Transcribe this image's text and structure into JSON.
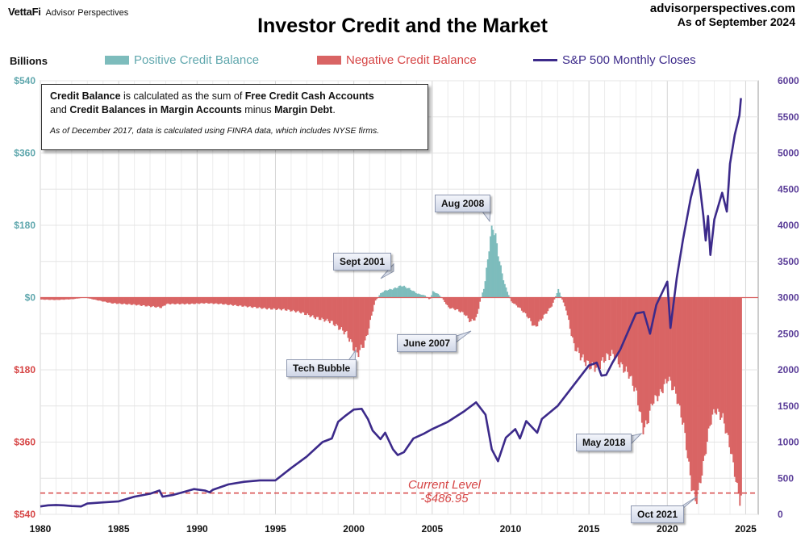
{
  "header": {
    "logo_brand": "VettaFi",
    "logo_sub": "Advisor Perspectives",
    "title": "Investor Credit and the Market",
    "source_line1": "advisorperspectives.com",
    "source_line2": "As of September 2024"
  },
  "legend": {
    "units": "Billions",
    "positive": "Positive Credit Balance",
    "negative": "Negative Credit Balance",
    "sp500": "S&P 500 Monthly Closes"
  },
  "info_box": {
    "line1_bold1": "Credit Balance",
    "line1_mid": " is calculated as the sum of ",
    "line1_bold2": "Free Credit Cash Accounts",
    "line2_pre": "and ",
    "line2_bold": "Credit Balances in Margin Accounts",
    "line2_mid": " minus ",
    "line2_bold2": "Margin Debt",
    "line2_end": ".",
    "note": "As of December 2017, data is calculated using FINRA data, which includes NYSE firms."
  },
  "annotations": {
    "aug2008": "Aug 2008",
    "sept2001": "Sept 2001",
    "june2007": "June 2007",
    "tech_bubble": "Tech Bubble",
    "may2018": "May 2018",
    "oct2021": "Oct 2021",
    "current_label": "Current Level",
    "current_value": "-$486.95"
  },
  "colors": {
    "positive": "#7dbcbc",
    "negative": "#d96464",
    "sp500": "#3c2a8a",
    "left_pos_axis": "#5fa7ad",
    "left_neg_axis": "#d64545",
    "right_axis": "#5a3d98",
    "current_line": "#d64545"
  },
  "chart_data": {
    "type": "bar+line",
    "title": "Investor Credit and the Market",
    "xlabel": "",
    "x_ticks": [
      "1980",
      "1985",
      "1990",
      "1995",
      "2000",
      "2005",
      "2010",
      "2015",
      "2020",
      "2025"
    ],
    "y_left": {
      "label": "Billions",
      "ylim": [
        -540,
        540
      ],
      "tick_labels": [
        "$540",
        "$360",
        "$180",
        "$0",
        "$180",
        "$360",
        "$540"
      ],
      "tick_values": [
        540,
        360,
        180,
        0,
        -180,
        -360,
        -540
      ]
    },
    "y_right": {
      "label": "",
      "ylim": [
        0,
        6000
      ],
      "tick_labels": [
        "6000",
        "5500",
        "5000",
        "4500",
        "4000",
        "3500",
        "3000",
        "2500",
        "2000",
        "1500",
        "1000",
        "500",
        "0"
      ],
      "tick_values": [
        6000,
        5500,
        5000,
        4500,
        4000,
        3500,
        3000,
        2500,
        2000,
        1500,
        1000,
        500,
        0
      ]
    },
    "grid": true,
    "current_level": -486.95,
    "credit_balance_series": {
      "name": "Credit Balance",
      "points": [
        [
          1980.0,
          -5
        ],
        [
          1981.0,
          -6
        ],
        [
          1982.0,
          -4
        ],
        [
          1982.8,
          0
        ],
        [
          1983.5,
          -6
        ],
        [
          1984.5,
          -14
        ],
        [
          1986.0,
          -18
        ],
        [
          1987.7,
          -25
        ],
        [
          1988.0,
          -16
        ],
        [
          1989.5,
          -16
        ],
        [
          1990.5,
          -14
        ],
        [
          1991.5,
          -16
        ],
        [
          1993.0,
          -22
        ],
        [
          1994.5,
          -28
        ],
        [
          1995.5,
          -30
        ],
        [
          1996.5,
          -36
        ],
        [
          1997.5,
          -50
        ],
        [
          1998.5,
          -60
        ],
        [
          1999.5,
          -90
        ],
        [
          2000.0,
          -130
        ],
        [
          2000.2,
          -140
        ],
        [
          2000.7,
          -110
        ],
        [
          2001.0,
          -60
        ],
        [
          2001.3,
          -10
        ],
        [
          2001.7,
          12
        ],
        [
          2002.0,
          18
        ],
        [
          2002.5,
          22
        ],
        [
          2003.0,
          30
        ],
        [
          2003.5,
          22
        ],
        [
          2004.0,
          10
        ],
        [
          2004.5,
          5
        ],
        [
          2004.8,
          -6
        ],
        [
          2005.0,
          15
        ],
        [
          2005.3,
          10
        ],
        [
          2005.6,
          -2
        ],
        [
          2006.0,
          -25
        ],
        [
          2006.5,
          -30
        ],
        [
          2007.0,
          -40
        ],
        [
          2007.4,
          -60
        ],
        [
          2007.8,
          -50
        ],
        [
          2008.0,
          -10
        ],
        [
          2008.3,
          30
        ],
        [
          2008.6,
          130
        ],
        [
          2008.8,
          182
        ],
        [
          2009.0,
          150
        ],
        [
          2009.3,
          80
        ],
        [
          2009.6,
          30
        ],
        [
          2010.0,
          -10
        ],
        [
          2010.5,
          -25
        ],
        [
          2011.0,
          -45
        ],
        [
          2011.5,
          -75
        ],
        [
          2011.8,
          -60
        ],
        [
          2012.2,
          -40
        ],
        [
          2012.6,
          -20
        ],
        [
          2013.0,
          20
        ],
        [
          2013.5,
          -30
        ],
        [
          2014.0,
          -120
        ],
        [
          2014.5,
          -150
        ],
        [
          2015.0,
          -170
        ],
        [
          2015.5,
          -175
        ],
        [
          2016.0,
          -150
        ],
        [
          2016.5,
          -140
        ],
        [
          2017.0,
          -170
        ],
        [
          2017.5,
          -190
        ],
        [
          2018.0,
          -240
        ],
        [
          2018.4,
          -330
        ],
        [
          2018.7,
          -310
        ],
        [
          2019.0,
          -260
        ],
        [
          2019.5,
          -240
        ],
        [
          2020.0,
          -200
        ],
        [
          2020.5,
          -240
        ],
        [
          2021.0,
          -320
        ],
        [
          2021.5,
          -470
        ],
        [
          2021.8,
          -510
        ],
        [
          2022.2,
          -430
        ],
        [
          2022.7,
          -310
        ],
        [
          2023.0,
          -280
        ],
        [
          2023.5,
          -300
        ],
        [
          2024.0,
          -380
        ],
        [
          2024.4,
          -470
        ],
        [
          2024.6,
          -510
        ],
        [
          2024.7,
          -487
        ]
      ]
    },
    "sp500_series": {
      "name": "S&P 500 Monthly Closes",
      "points": [
        [
          1980.0,
          110
        ],
        [
          1980.5,
          125
        ],
        [
          1981.0,
          130
        ],
        [
          1981.5,
          125
        ],
        [
          1982.0,
          115
        ],
        [
          1982.6,
          110
        ],
        [
          1983.0,
          150
        ],
        [
          1984.0,
          165
        ],
        [
          1985.0,
          180
        ],
        [
          1986.0,
          245
        ],
        [
          1987.0,
          285
        ],
        [
          1987.6,
          330
        ],
        [
          1987.8,
          245
        ],
        [
          1988.5,
          270
        ],
        [
          1989.0,
          300
        ],
        [
          1989.8,
          350
        ],
        [
          1990.5,
          330
        ],
        [
          1990.8,
          305
        ],
        [
          1991.0,
          340
        ],
        [
          1992.0,
          415
        ],
        [
          1993.0,
          450
        ],
        [
          1994.0,
          470
        ],
        [
          1995.0,
          470
        ],
        [
          1996.0,
          640
        ],
        [
          1997.0,
          800
        ],
        [
          1998.0,
          1000
        ],
        [
          1998.6,
          1050
        ],
        [
          1999.0,
          1280
        ],
        [
          1999.5,
          1370
        ],
        [
          2000.0,
          1450
        ],
        [
          2000.5,
          1460
        ],
        [
          2000.9,
          1320
        ],
        [
          2001.2,
          1160
        ],
        [
          2001.7,
          1040
        ],
        [
          2002.0,
          1130
        ],
        [
          2002.5,
          900
        ],
        [
          2002.8,
          820
        ],
        [
          2003.2,
          860
        ],
        [
          2003.8,
          1050
        ],
        [
          2004.5,
          1120
        ],
        [
          2005.0,
          1180
        ],
        [
          2006.0,
          1280
        ],
        [
          2007.0,
          1420
        ],
        [
          2007.8,
          1550
        ],
        [
          2008.4,
          1380
        ],
        [
          2008.8,
          900
        ],
        [
          2009.2,
          735
        ],
        [
          2009.7,
          1060
        ],
        [
          2010.3,
          1180
        ],
        [
          2010.6,
          1050
        ],
        [
          2011.0,
          1290
        ],
        [
          2011.7,
          1130
        ],
        [
          2012.0,
          1320
        ],
        [
          2013.0,
          1500
        ],
        [
          2014.0,
          1780
        ],
        [
          2015.0,
          2060
        ],
        [
          2015.5,
          2100
        ],
        [
          2015.8,
          1920
        ],
        [
          2016.1,
          1930
        ],
        [
          2016.5,
          2100
        ],
        [
          2017.0,
          2280
        ],
        [
          2018.0,
          2780
        ],
        [
          2018.5,
          2800
        ],
        [
          2018.9,
          2500
        ],
        [
          2019.3,
          2900
        ],
        [
          2020.0,
          3220
        ],
        [
          2020.2,
          2580
        ],
        [
          2020.6,
          3270
        ],
        [
          2021.0,
          3800
        ],
        [
          2021.5,
          4380
        ],
        [
          2021.95,
          4770
        ],
        [
          2022.3,
          4130
        ],
        [
          2022.45,
          3790
        ],
        [
          2022.6,
          4130
        ],
        [
          2022.75,
          3590
        ],
        [
          2023.0,
          4080
        ],
        [
          2023.5,
          4450
        ],
        [
          2023.8,
          4190
        ],
        [
          2024.0,
          4850
        ],
        [
          2024.3,
          5250
        ],
        [
          2024.6,
          5520
        ],
        [
          2024.7,
          5760
        ]
      ]
    }
  }
}
